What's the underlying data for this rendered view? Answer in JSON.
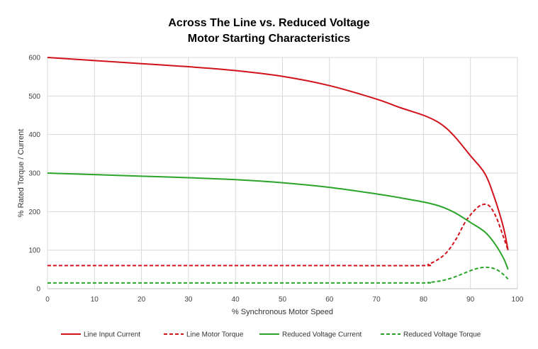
{
  "chart_data": {
    "type": "line",
    "title": [
      "Across The Line vs. Reduced Voltage",
      "Motor Starting Characteristics"
    ],
    "xlabel": "% Synchronous Motor Speed",
    "ylabel": "% Rated Torque / Current",
    "xlim": [
      0,
      100
    ],
    "ylim": [
      0,
      600
    ],
    "xticks": [
      0,
      10,
      20,
      30,
      40,
      50,
      60,
      70,
      80,
      90,
      100
    ],
    "yticks": [
      0,
      100,
      200,
      300,
      400,
      500,
      600
    ],
    "grid": true,
    "legend_position": "bottom",
    "series": [
      {
        "name": "Line Input Current",
        "color": "#d0121b",
        "style": "solid",
        "x": [
          0,
          10,
          20,
          30,
          40,
          50,
          60,
          70,
          75,
          80,
          83,
          85,
          87,
          90,
          93,
          95,
          97,
          98
        ],
        "y": [
          600,
          592,
          584,
          576,
          566,
          551,
          527,
          492,
          470,
          450,
          433,
          415,
          390,
          345,
          300,
          240,
          160,
          100
        ]
      },
      {
        "name": "Line Motor Torque",
        "color": "#d0121b",
        "style": "dashed",
        "x": [
          0,
          20,
          40,
          60,
          80,
          81,
          83,
          85,
          87,
          89,
          91,
          92.5,
          94,
          95.5,
          97,
          98
        ],
        "y": [
          60,
          60,
          60,
          60,
          60,
          63,
          75,
          95,
          130,
          175,
          205,
          218,
          215,
          185,
          135,
          100
        ]
      },
      {
        "name": "Reduced Voltage Current",
        "color": "#2aa52a",
        "style": "solid",
        "x": [
          0,
          10,
          20,
          30,
          40,
          50,
          60,
          70,
          75,
          80,
          83,
          85,
          87,
          90,
          93,
          95,
          97,
          98
        ],
        "y": [
          300,
          296,
          292,
          288,
          283,
          275,
          263,
          246,
          236,
          225,
          216,
          207,
          195,
          172,
          148,
          120,
          80,
          50
        ]
      },
      {
        "name": "Reduced Voltage Torque",
        "color": "#2aa52a",
        "style": "dashed",
        "x": [
          0,
          20,
          40,
          60,
          80,
          81,
          83,
          85,
          87,
          89,
          91,
          92.5,
          94,
          95.5,
          97,
          98
        ],
        "y": [
          15,
          15,
          15,
          15,
          15,
          16,
          19,
          24,
          32,
          42,
          51,
          55,
          55,
          50,
          37,
          25
        ]
      }
    ]
  }
}
